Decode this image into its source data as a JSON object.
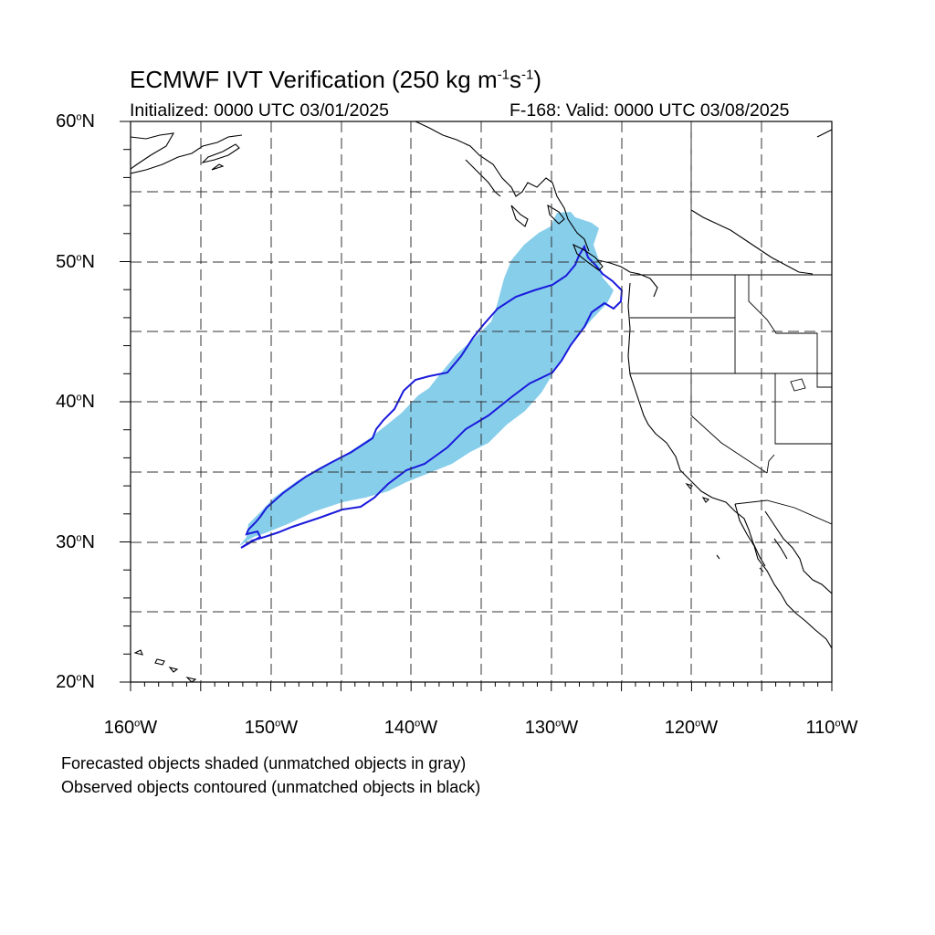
{
  "title": {
    "main": "ECMWF IVT Verification (250 kg m",
    "sup1": "-1",
    "mid": "s",
    "sup2": "-1",
    "end": ")"
  },
  "initialized": "Initialized: 0000 UTC 03/01/2025",
  "valid": "F-168: Valid: 0000 UTC 03/08/2025",
  "lat_labels": [
    {
      "deg": "60",
      "hem": "N"
    },
    {
      "deg": "50",
      "hem": "N"
    },
    {
      "deg": "40",
      "hem": "N"
    },
    {
      "deg": "30",
      "hem": "N"
    },
    {
      "deg": "20",
      "hem": "N"
    }
  ],
  "lon_labels": [
    {
      "deg": "160",
      "hem": "W"
    },
    {
      "deg": "150",
      "hem": "W"
    },
    {
      "deg": "140",
      "hem": "W"
    },
    {
      "deg": "130",
      "hem": "W"
    },
    {
      "deg": "120",
      "hem": "W"
    },
    {
      "deg": "110",
      "hem": "W"
    }
  ],
  "notes": [
    "Forecasted objects shaded (unmatched objects in gray)",
    "Observed objects contoured (unmatched objects in black)"
  ],
  "colors": {
    "forecast_fill": "#87ceeb",
    "observed_contour": "#1a1adc",
    "coastline": "#000000",
    "grid": "#000000"
  }
}
